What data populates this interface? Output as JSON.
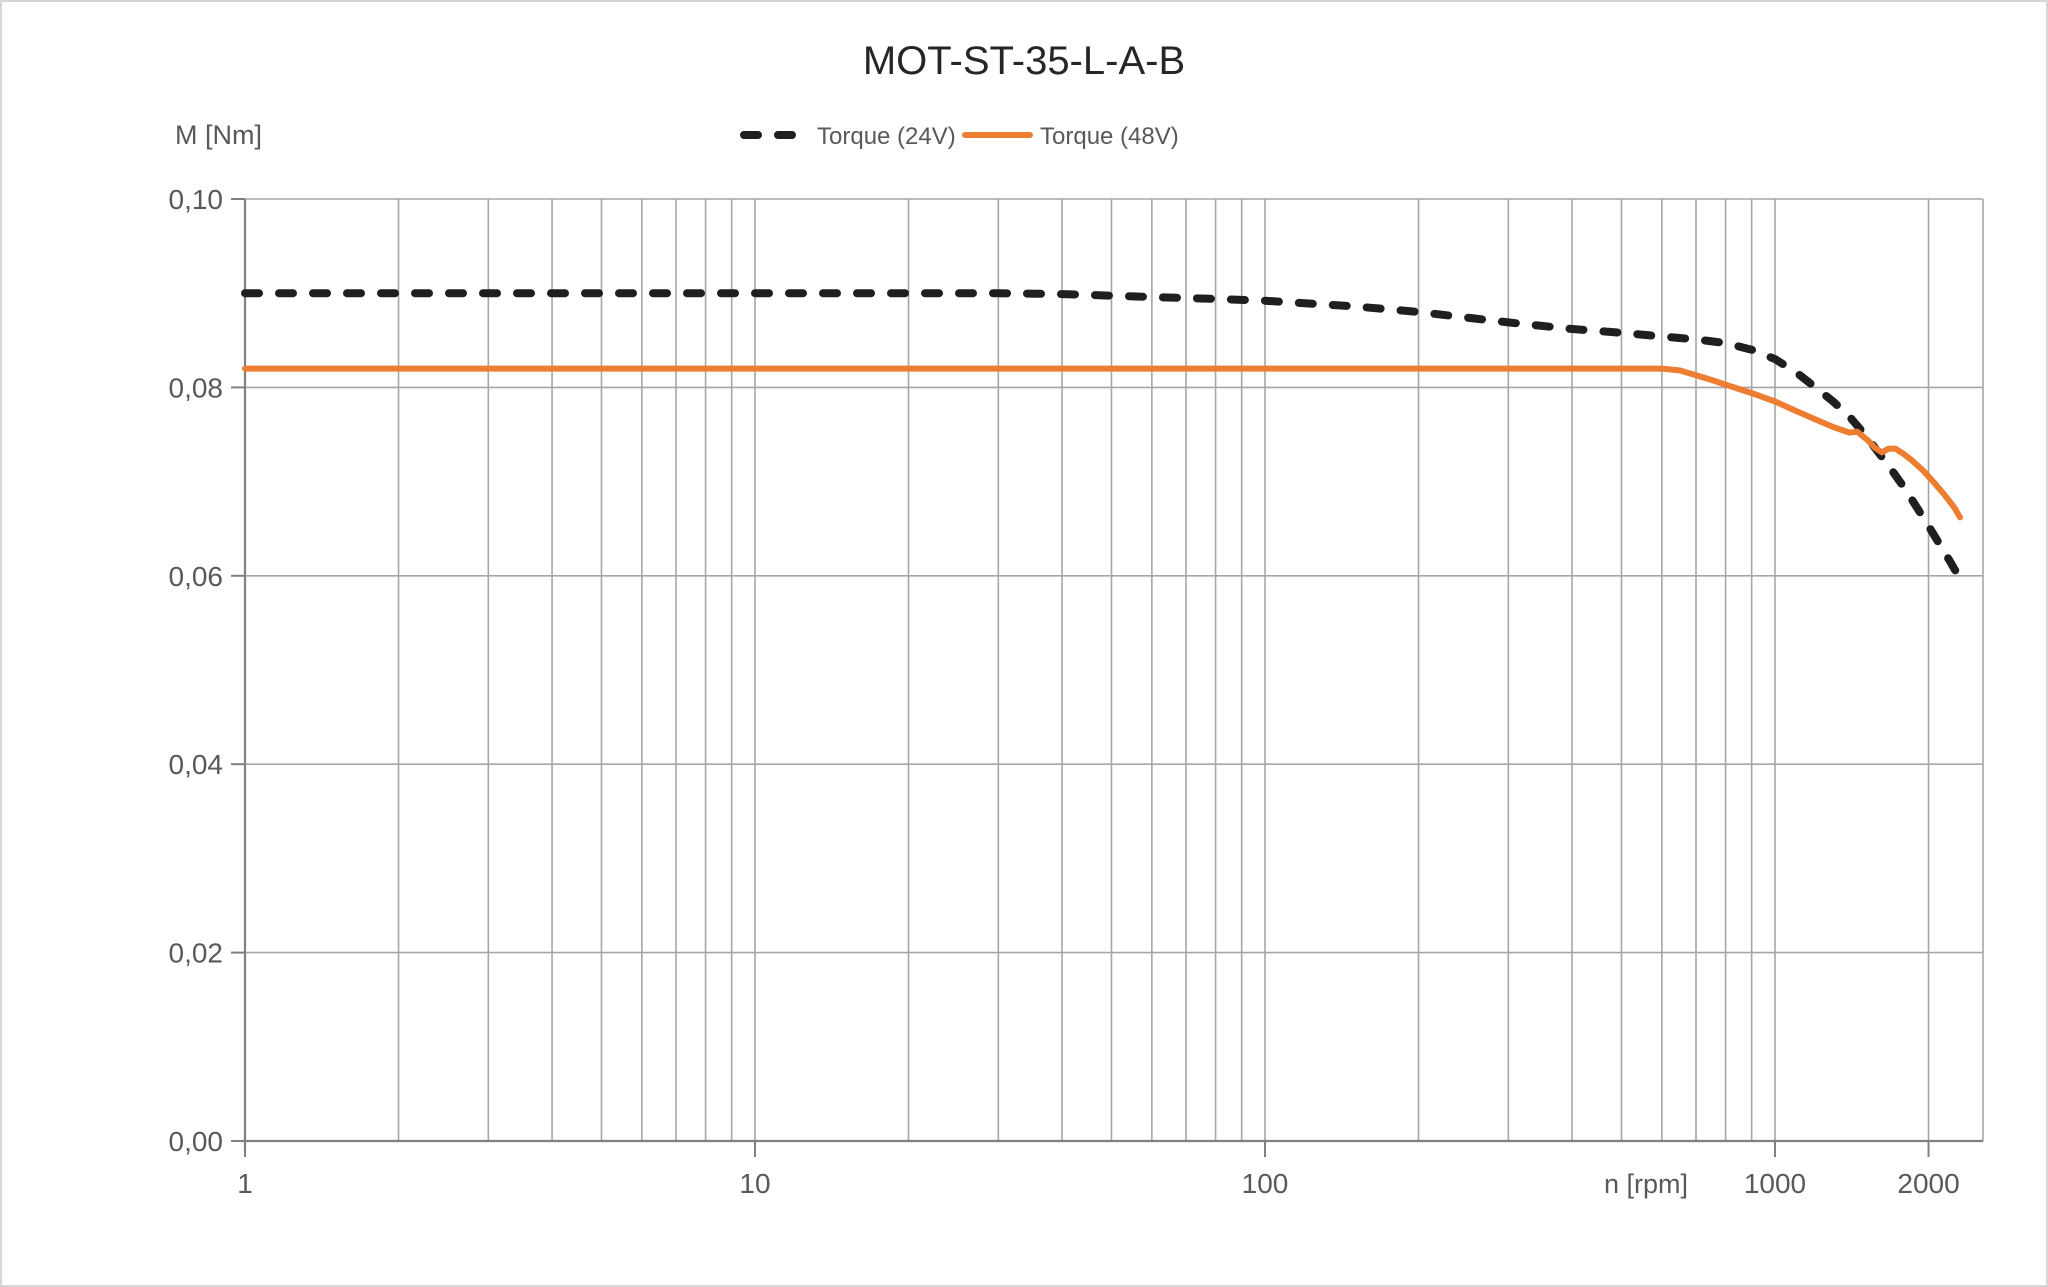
{
  "chart_data": {
    "type": "line",
    "title": "MOT-ST-35-L-A-B",
    "grid": true,
    "legend": {
      "position": "top-center",
      "entries": [
        "Torque (24V)",
        "Torque (48V)"
      ]
    },
    "x_axis": {
      "label": "n [rpm]",
      "scale": "log",
      "min": 1,
      "max": 2560,
      "ticks": [
        {
          "value": 1,
          "label": "1"
        },
        {
          "value": 10,
          "label": "10"
        },
        {
          "value": 100,
          "label": "100"
        },
        {
          "value": 1000,
          "label": "1000"
        },
        {
          "value": 2000,
          "label": "2000"
        }
      ],
      "minor_gridlines": [
        2,
        3,
        4,
        5,
        6,
        7,
        8,
        9,
        20,
        30,
        40,
        50,
        60,
        70,
        80,
        90,
        200,
        300,
        400,
        500,
        600,
        700,
        800,
        900,
        2000
      ],
      "major_gridlines": [
        10,
        100,
        1000
      ]
    },
    "y_axis": {
      "label": "M [Nm]",
      "min": 0.0,
      "max": 0.1,
      "ticks": [
        {
          "value": 0.1,
          "label": "0,10"
        },
        {
          "value": 0.08,
          "label": "0,08"
        },
        {
          "value": 0.06,
          "label": "0,06"
        },
        {
          "value": 0.04,
          "label": "0,04"
        },
        {
          "value": 0.02,
          "label": "0,02"
        },
        {
          "value": 0.0,
          "label": "0,00"
        }
      ]
    },
    "series": [
      {
        "name": "Torque (24V)",
        "voltage": "24V",
        "color": "#1f1f1f",
        "line_style": "dashed",
        "points": [
          [
            1,
            0.09
          ],
          [
            5,
            0.09
          ],
          [
            10,
            0.09
          ],
          [
            20,
            0.09
          ],
          [
            30,
            0.09
          ],
          [
            40,
            0.0899
          ],
          [
            60,
            0.0896
          ],
          [
            80,
            0.0894
          ],
          [
            100,
            0.0892
          ],
          [
            150,
            0.0886
          ],
          [
            200,
            0.088
          ],
          [
            250,
            0.0874
          ],
          [
            300,
            0.0869
          ],
          [
            400,
            0.0862
          ],
          [
            500,
            0.0858
          ],
          [
            600,
            0.0854
          ],
          [
            700,
            0.0851
          ],
          [
            800,
            0.0847
          ],
          [
            900,
            0.084
          ],
          [
            1000,
            0.083
          ],
          [
            1100,
            0.0816
          ],
          [
            1200,
            0.08
          ],
          [
            1300,
            0.0785
          ],
          [
            1400,
            0.0769
          ],
          [
            1500,
            0.075
          ],
          [
            1600,
            0.073
          ],
          [
            1700,
            0.0711
          ],
          [
            1800,
            0.0692
          ],
          [
            1900,
            0.0672
          ],
          [
            2000,
            0.0653
          ],
          [
            2100,
            0.0634
          ],
          [
            2200,
            0.0616
          ],
          [
            2300,
            0.0598
          ]
        ]
      },
      {
        "name": "Torque (48V)",
        "voltage": "48V",
        "color": "#ED7D31",
        "line_style": "solid",
        "points": [
          [
            1,
            0.082
          ],
          [
            100,
            0.082
          ],
          [
            300,
            0.082
          ],
          [
            500,
            0.082
          ],
          [
            600,
            0.082
          ],
          [
            650,
            0.0818
          ],
          [
            700,
            0.0813
          ],
          [
            750,
            0.0808
          ],
          [
            800,
            0.0803
          ],
          [
            900,
            0.0794
          ],
          [
            1000,
            0.0785
          ],
          [
            1100,
            0.0775
          ],
          [
            1200,
            0.0766
          ],
          [
            1300,
            0.0758
          ],
          [
            1400,
            0.0752
          ],
          [
            1450,
            0.0753
          ],
          [
            1520,
            0.0744
          ],
          [
            1570,
            0.0736
          ],
          [
            1620,
            0.0731
          ],
          [
            1670,
            0.0735
          ],
          [
            1720,
            0.0735
          ],
          [
            1780,
            0.073
          ],
          [
            1850,
            0.0723
          ],
          [
            1950,
            0.0712
          ],
          [
            2050,
            0.0699
          ],
          [
            2150,
            0.0686
          ],
          [
            2250,
            0.0672
          ],
          [
            2305,
            0.0662
          ]
        ]
      }
    ],
    "colors": {
      "gridline": "#a6a6a6",
      "axis": "#808080",
      "text": "#595959",
      "title": "#262626",
      "series_24v": "#1f1f1f",
      "series_48v": "#ED7D31"
    }
  }
}
